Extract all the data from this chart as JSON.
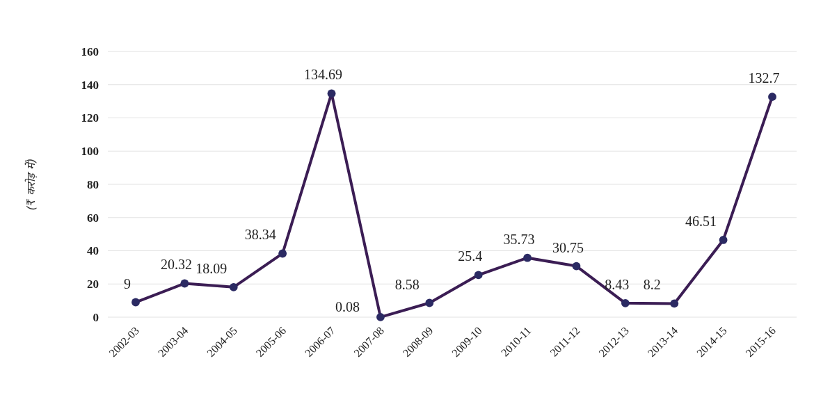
{
  "chart_data": {
    "type": "line",
    "ylabel": "(₹ करोड़ में)",
    "categories": [
      "2002-03",
      "2003-04",
      "2004-05",
      "2005-06",
      "2006-07",
      "2007-08",
      "2008-09",
      "2009-10",
      "2010-11",
      "2011-12",
      "2012-13",
      "2013-14",
      "2014-15",
      "2015-16"
    ],
    "values": [
      9,
      20.32,
      18.09,
      38.34,
      134.69,
      0.08,
      8.58,
      25.4,
      35.73,
      30.75,
      8.43,
      8.2,
      46.51,
      132.7
    ],
    "color": "#3b1d54",
    "marker": "circle",
    "line_style": "solid",
    "ylim": [
      0,
      160
    ],
    "yticks": [
      0,
      20,
      40,
      60,
      80,
      100,
      120,
      140,
      160
    ],
    "grid": "y",
    "data_labels": true
  }
}
